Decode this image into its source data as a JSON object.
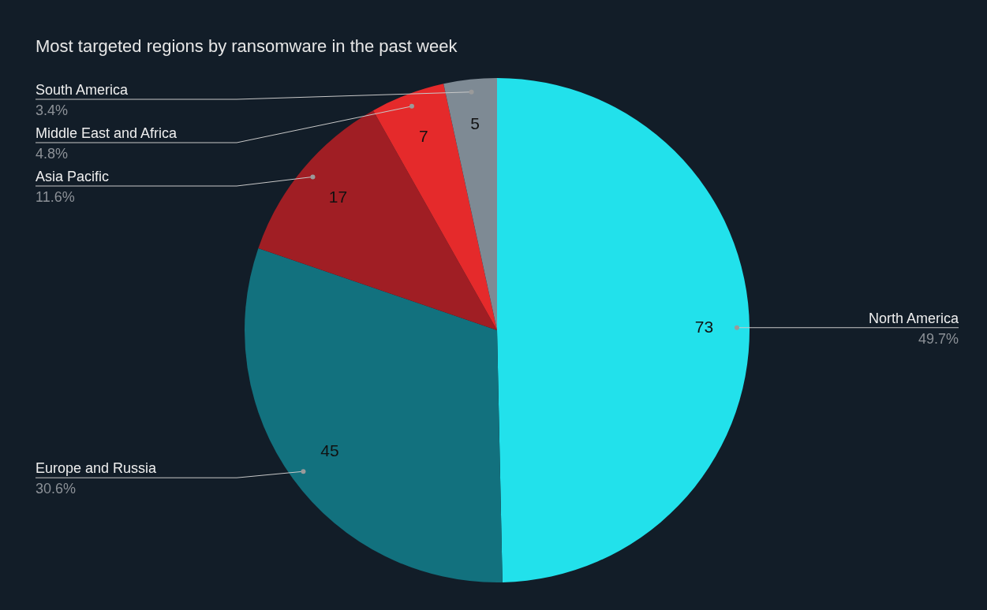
{
  "chart_data": {
    "type": "pie",
    "title": "Most targeted regions by ransomware in the past week",
    "categories": [
      "North America",
      "Europe and Russia",
      "Asia Pacific",
      "Middle East and Africa",
      "South America"
    ],
    "values": [
      73,
      45,
      17,
      7,
      5
    ],
    "colors": [
      "#22e1eb",
      "#12717e",
      "#a01e24",
      "#e52a2b",
      "#7e8a94"
    ],
    "data_labels": true,
    "annotations": [
      {
        "text": "49.7%",
        "x": "North America"
      },
      {
        "text": "30.6%",
        "x": "Europe and Russia"
      },
      {
        "text": "11.6%",
        "x": "Asia Pacific"
      },
      {
        "text": "4.8%",
        "x": "Middle East and Africa"
      },
      {
        "text": "3.4%",
        "x": "South America"
      }
    ]
  }
}
